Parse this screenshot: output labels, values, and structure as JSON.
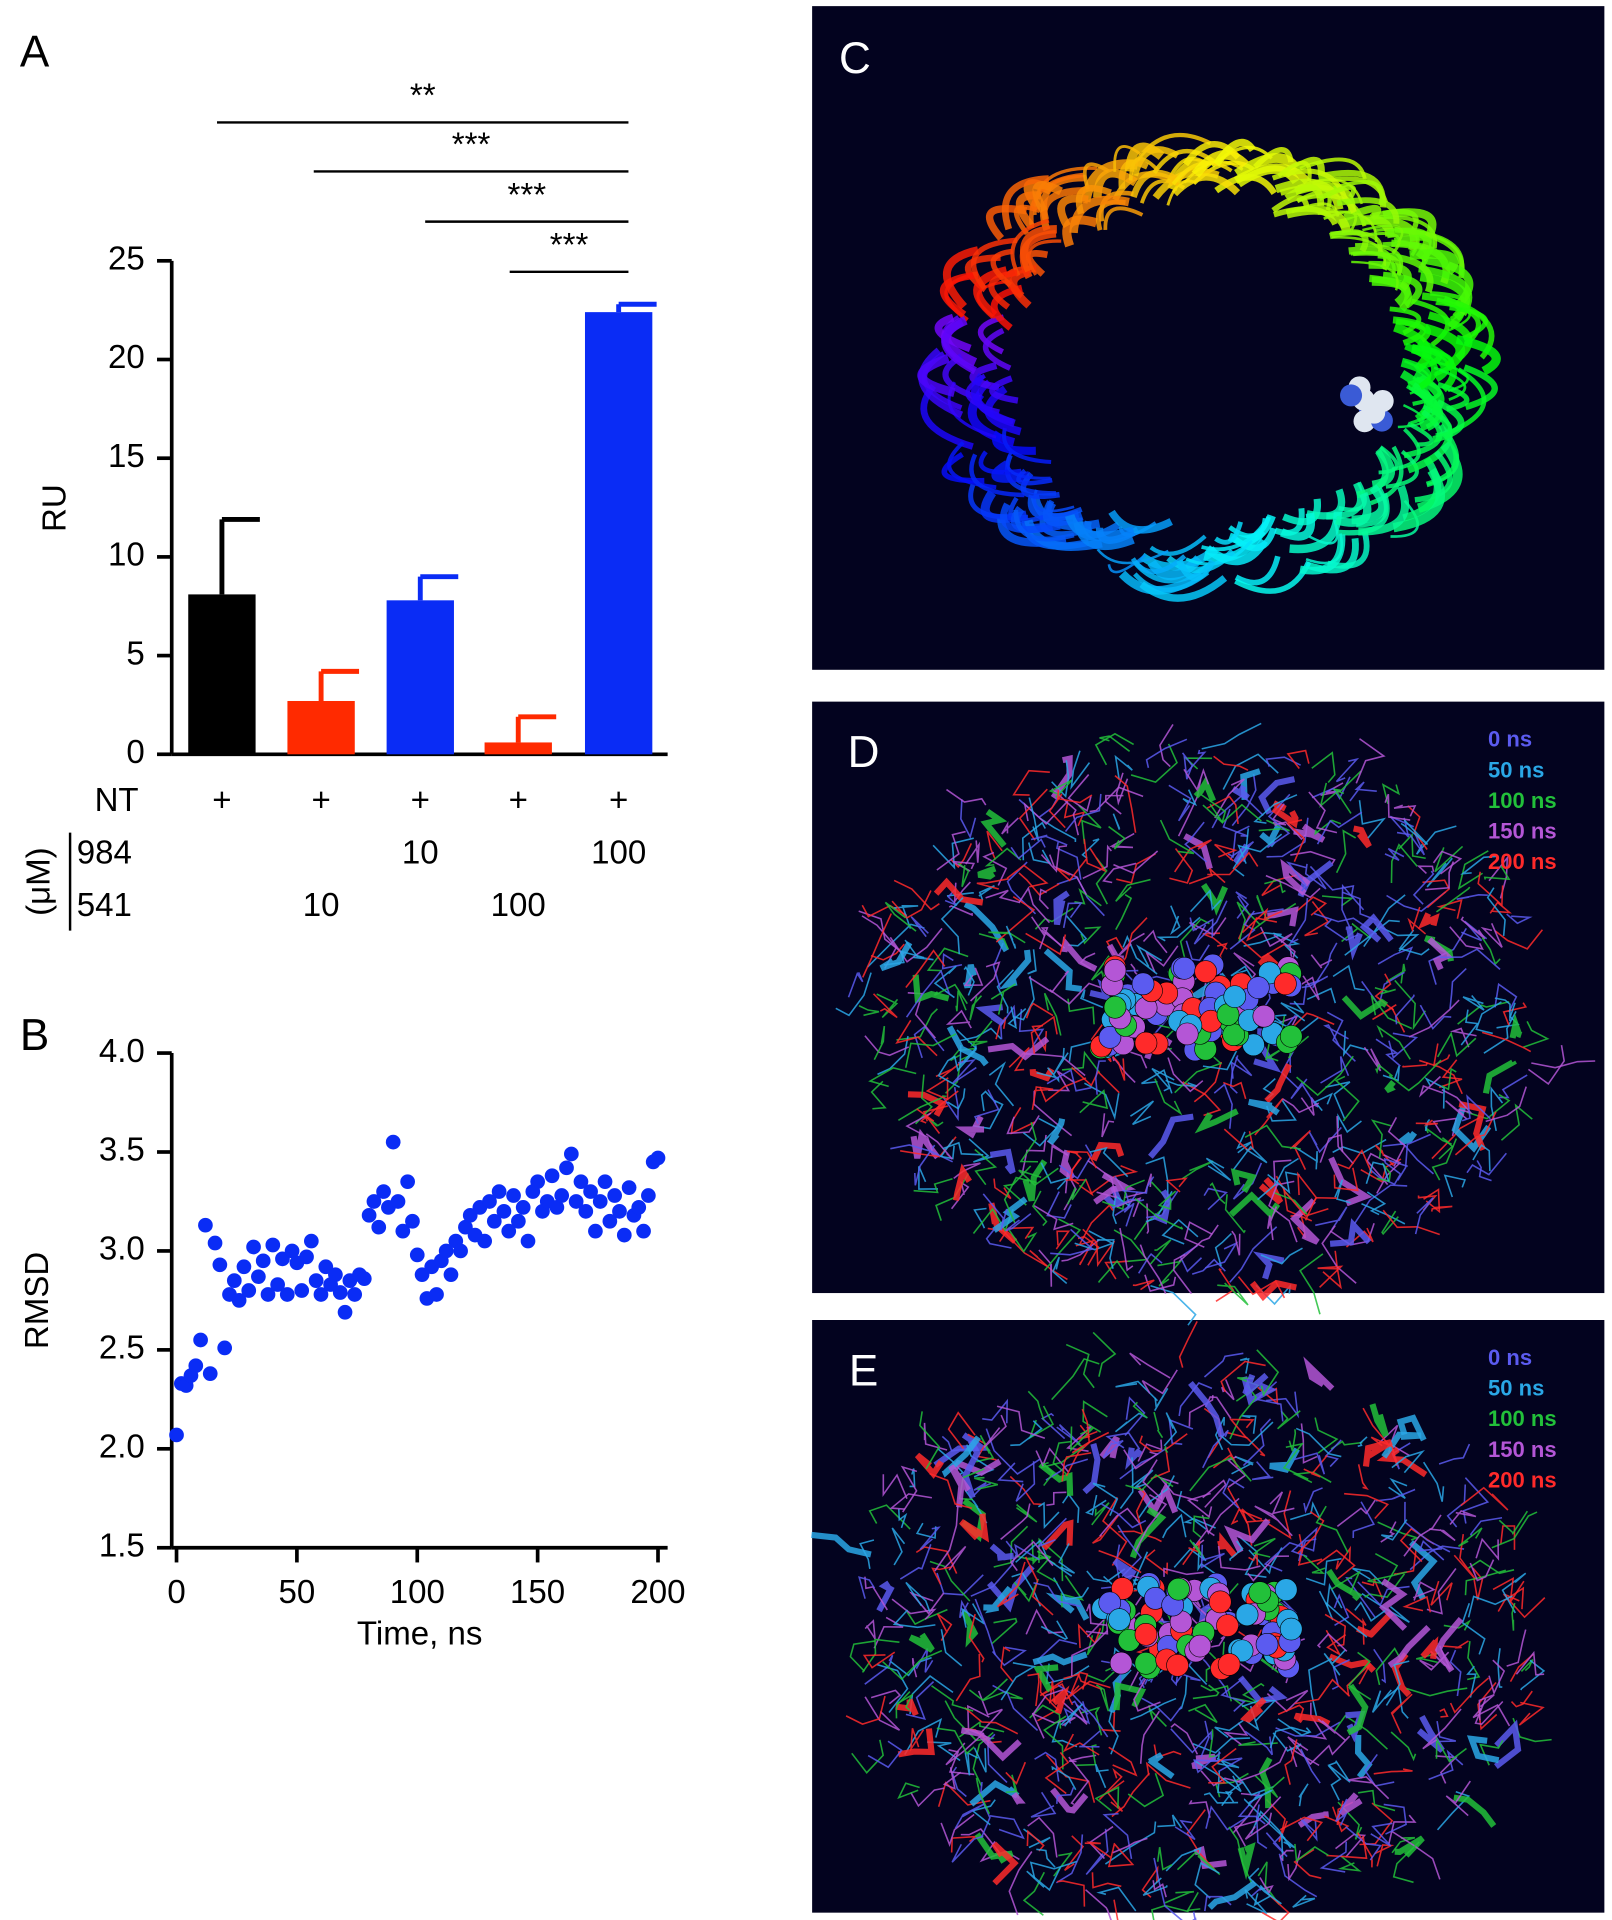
{
  "chart_data": [
    {
      "type": "bar",
      "panel": "A",
      "categories": [
        null,
        null,
        null,
        null,
        null
      ],
      "values": [
        8.1,
        2.7,
        7.8,
        0.6,
        22.4
      ],
      "errors": [
        3.8,
        1.5,
        1.2,
        1.3,
        0.4
      ],
      "colors": [
        "#000000",
        "#ff2a00",
        "#0a2cf5",
        "#ff2a00",
        "#0a2cf5"
      ],
      "ylim": [
        0,
        25
      ],
      "yticks": [
        0,
        5,
        10,
        15,
        20,
        25
      ],
      "ylabel": "RU",
      "significance": [
        {
          "from": 0,
          "to": 4,
          "label": "**"
        },
        {
          "from": 1,
          "to": 4,
          "label": "***"
        },
        {
          "from": 2,
          "to": 4,
          "label": "***"
        },
        {
          "from": 3,
          "to": 4,
          "label": "***"
        }
      ],
      "conditions": [
        {
          "label": "NT",
          "values": [
            "+",
            "+",
            "+",
            "+",
            "+"
          ]
        },
        {
          "label": "984",
          "values": [
            null,
            null,
            10,
            null,
            100
          ]
        },
        {
          "label": "541",
          "values": [
            null,
            10,
            null,
            100,
            null
          ]
        }
      ],
      "conditions_unit": "(μM)"
    },
    {
      "type": "scatter",
      "panel": "B",
      "color": "#0a2cf5",
      "x": [
        0,
        2,
        4,
        6,
        8,
        10,
        12,
        14,
        16,
        18,
        20,
        22,
        24,
        26,
        28,
        30,
        32,
        34,
        36,
        38,
        40,
        42,
        44,
        46,
        48,
        50,
        52,
        54,
        56,
        58,
        60,
        62,
        64,
        66,
        68,
        70,
        72,
        74,
        76,
        78,
        80,
        82,
        84,
        86,
        88,
        90,
        92,
        94,
        96,
        98,
        100,
        102,
        104,
        106,
        108,
        110,
        112,
        114,
        116,
        118,
        120,
        122,
        124,
        126,
        128,
        130,
        132,
        134,
        136,
        138,
        140,
        142,
        144,
        146,
        148,
        150,
        152,
        154,
        156,
        158,
        160,
        162,
        164,
        166,
        168,
        170,
        172,
        174,
        176,
        178,
        180,
        182,
        184,
        186,
        188,
        190,
        192,
        194,
        196,
        198,
        200
      ],
      "values": [
        2.07,
        2.33,
        2.32,
        2.37,
        2.42,
        2.55,
        3.13,
        2.38,
        3.04,
        2.93,
        2.51,
        2.78,
        2.85,
        2.75,
        2.92,
        2.8,
        3.02,
        2.87,
        2.95,
        2.78,
        3.03,
        2.83,
        2.96,
        2.78,
        3.0,
        2.94,
        2.8,
        2.97,
        3.05,
        2.85,
        2.78,
        2.92,
        2.83,
        2.88,
        2.79,
        2.69,
        2.85,
        2.78,
        2.88,
        2.86,
        3.18,
        3.25,
        3.12,
        3.3,
        3.22,
        3.55,
        3.25,
        3.1,
        3.35,
        3.15,
        2.98,
        2.88,
        2.76,
        2.92,
        2.78,
        2.95,
        3.0,
        2.88,
        3.05,
        3.0,
        3.12,
        3.18,
        3.08,
        3.22,
        3.05,
        3.25,
        3.15,
        3.3,
        3.2,
        3.1,
        3.28,
        3.15,
        3.22,
        3.05,
        3.3,
        3.35,
        3.2,
        3.25,
        3.38,
        3.22,
        3.28,
        3.42,
        3.49,
        3.25,
        3.35,
        3.2,
        3.3,
        3.1,
        3.25,
        3.35,
        3.15,
        3.28,
        3.2,
        3.08,
        3.32,
        3.18,
        3.22,
        3.1,
        3.28,
        3.45,
        3.47
      ],
      "xlim": [
        -2,
        204
      ],
      "ylim": [
        1.5,
        4.0
      ],
      "xticks": [
        0,
        50,
        100,
        150,
        200
      ],
      "yticks": [
        1.5,
        {
          "value": 2.0,
          "label": "2.0"
        },
        2.5,
        {
          "value": 3.0,
          "label": "3.0"
        },
        3.5,
        {
          "value": 4.0,
          "label": "4.0"
        }
      ],
      "xlabel": "Time, ns",
      "ylabel": "RMSD"
    }
  ],
  "structures": [
    {
      "panel": "C"
    },
    {
      "panel": "D",
      "legend": [
        {
          "name": "0 ns",
          "color": "#5b5bf0"
        },
        {
          "name": "50 ns",
          "color": "#2aa7e6"
        },
        {
          "name": "100 ns",
          "color": "#22c03a"
        },
        {
          "name": "150 ns",
          "color": "#b456d6"
        },
        {
          "name": "200 ns",
          "color": "#ff2a2a"
        }
      ]
    },
    {
      "panel": "E",
      "legend": [
        {
          "name": "0 ns",
          "color": "#5b5bf0"
        },
        {
          "name": "50 ns",
          "color": "#2aa7e6"
        },
        {
          "name": "100 ns",
          "color": "#22c03a"
        },
        {
          "name": "150 ns",
          "color": "#b456d6"
        },
        {
          "name": "200 ns",
          "color": "#ff2a2a"
        }
      ]
    }
  ]
}
